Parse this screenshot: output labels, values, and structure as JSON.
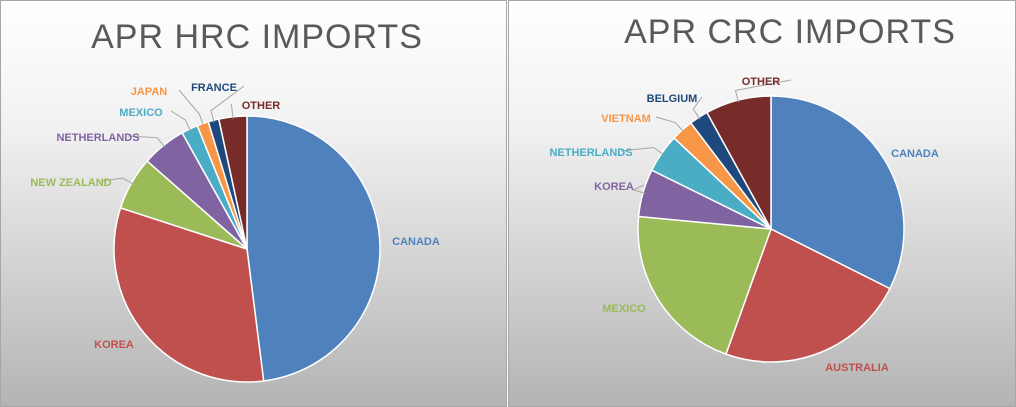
{
  "chart_data": [
    {
      "type": "pie",
      "title": "APR HRC IMPORTS",
      "categories": [
        "CANADA",
        "KOREA",
        "NEW ZEALAND",
        "NETHERLANDS",
        "MEXICO",
        "JAPAN",
        "FRANCE",
        "OTHER"
      ],
      "values": [
        48,
        32,
        6.5,
        5.4,
        2,
        1.4,
        1.3,
        3.4
      ],
      "colors": [
        "#4f81bd",
        "#c0504d",
        "#9bbb59",
        "#8064a2",
        "#4bacc6",
        "#f79646",
        "#1f497d",
        "#772c2a"
      ]
    },
    {
      "type": "pie",
      "title": "APR CRC IMPORTS",
      "categories": [
        "CANADA",
        "AUSTRALIA",
        "MEXICO",
        "KOREA",
        "NETHERLANDS",
        "VIETNAM",
        "BELGIUM",
        "OTHER"
      ],
      "values": [
        32.4,
        23.1,
        21,
        5.8,
        4.7,
        2.7,
        2.3,
        8
      ],
      "colors": [
        "#4f81bd",
        "#c0504d",
        "#9bbb59",
        "#8064a2",
        "#4bacc6",
        "#f79646",
        "#1f497d",
        "#772c2a"
      ]
    }
  ]
}
